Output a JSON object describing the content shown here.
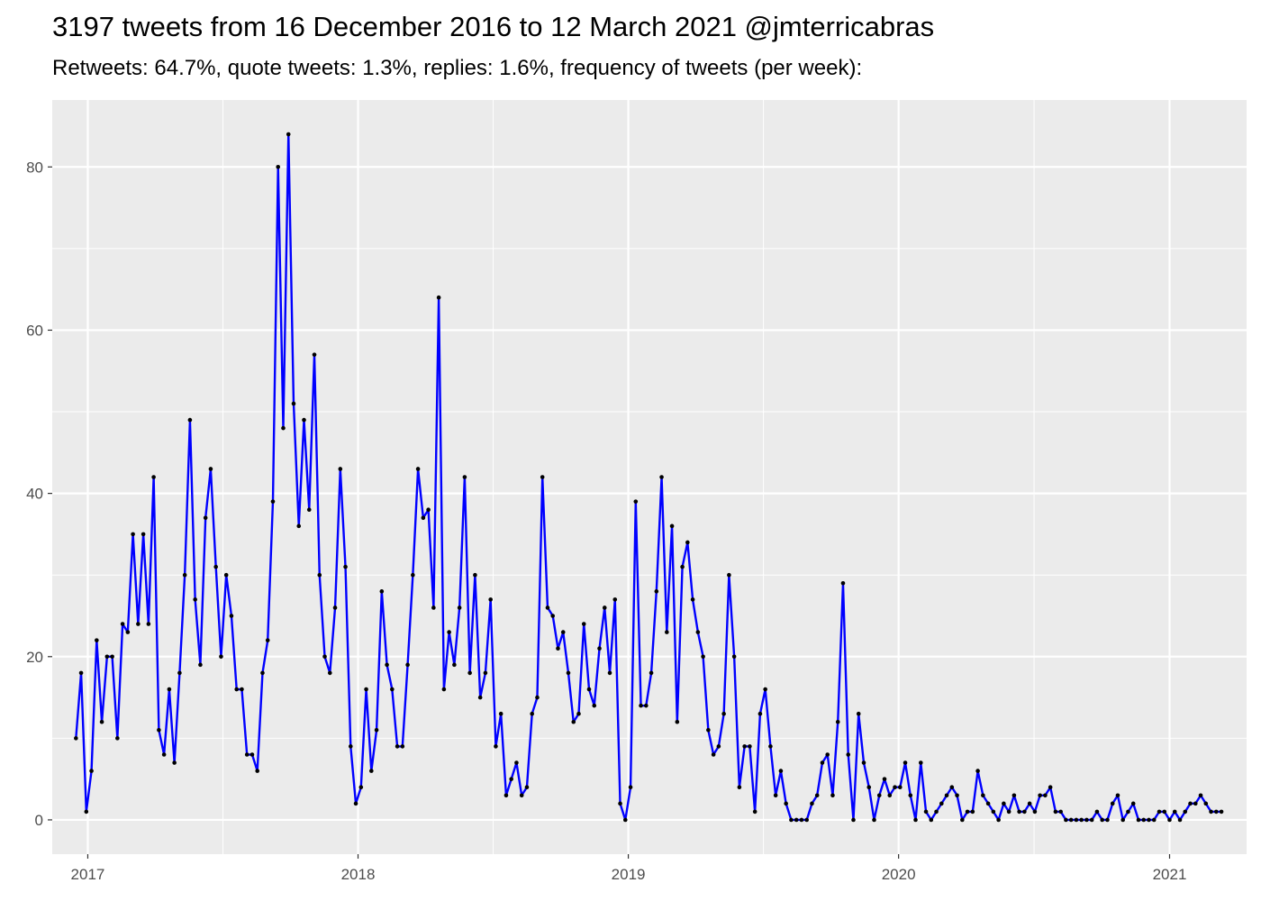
{
  "chart_data": {
    "type": "line",
    "title": "3197 tweets from 16 December 2016 to 12 March 2021 @jmterricabras",
    "subtitle": "Retweets: 64.7%, quote tweets: 1.3%, replies: 1.6%, frequency of tweets (per week):",
    "xlabel": "",
    "ylabel": "",
    "x_ticks": [
      "2017",
      "2018",
      "2019",
      "2020",
      "2021"
    ],
    "x_tick_dates": [
      "2017-01-01",
      "2018-01-01",
      "2019-01-01",
      "2020-01-01",
      "2021-01-01"
    ],
    "y_ticks": [
      0,
      20,
      40,
      60,
      80
    ],
    "xlim": [
      "2016-11-14",
      "2021-04-15"
    ],
    "ylim": [
      -4.2,
      88.2
    ],
    "grid": true,
    "background": "#ebebeb",
    "line_color": "#0000ff",
    "point_color": "#000000",
    "series": [
      {
        "start_date": "2016-12-16",
        "step_days": 7,
        "values": [
          10,
          18,
          1,
          6,
          22,
          12,
          20,
          20,
          10,
          24,
          23,
          35,
          24,
          35,
          24,
          42,
          11,
          8,
          16,
          7,
          18,
          30,
          49,
          27,
          19,
          37,
          43,
          31,
          20,
          30,
          25,
          16,
          16,
          8,
          8,
          6,
          18,
          22,
          39,
          80,
          48,
          84,
          51,
          36,
          49,
          38,
          57,
          30,
          20,
          18,
          26,
          43,
          31,
          9,
          2,
          4,
          16,
          6,
          11,
          28,
          19,
          16,
          9,
          9,
          19,
          30,
          43,
          37,
          38,
          26,
          64,
          16,
          23,
          19,
          26,
          42,
          18,
          30,
          15,
          18,
          27,
          9,
          13,
          3,
          5,
          7,
          3,
          4,
          13,
          15,
          42,
          26,
          25,
          21,
          23,
          18,
          12,
          13,
          24,
          16,
          14,
          21,
          26,
          18,
          27,
          2,
          0,
          4,
          39,
          14,
          14,
          18,
          28,
          42,
          23,
          36,
          12,
          31,
          34,
          27,
          23,
          20,
          11,
          8,
          9,
          13,
          30,
          20,
          4,
          9,
          9,
          1,
          13,
          16,
          9,
          3,
          6,
          2,
          0,
          0,
          0,
          0,
          2,
          3,
          7,
          8,
          3,
          12,
          29,
          8,
          0,
          13,
          7,
          4,
          0,
          3,
          5,
          3,
          4,
          4,
          7,
          3,
          0,
          7,
          1,
          0,
          1,
          2,
          3,
          4,
          3,
          0,
          1,
          1,
          6,
          3,
          2,
          1,
          0,
          2,
          1,
          3,
          1,
          1,
          2,
          1,
          3,
          3,
          4,
          1,
          1,
          0,
          0,
          0,
          0,
          0,
          0,
          1,
          0,
          0,
          2,
          3,
          0,
          1,
          2,
          0,
          0,
          0,
          0,
          1,
          1,
          0,
          1,
          0,
          1,
          2,
          2,
          3,
          2,
          1,
          1,
          1
        ]
      }
    ]
  }
}
